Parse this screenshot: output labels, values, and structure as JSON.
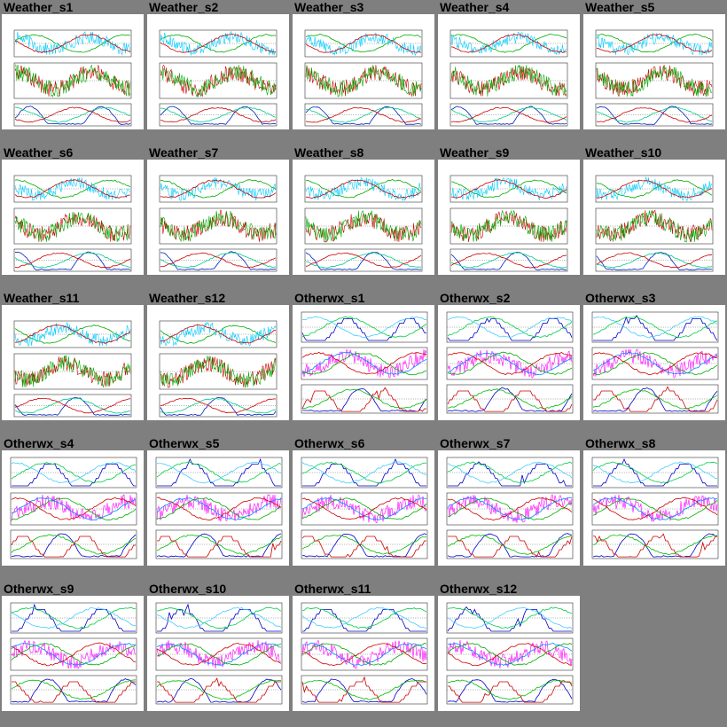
{
  "page": {
    "background": "#7f7f7f"
  },
  "tiles": [
    {
      "title": "Weather_s1",
      "kind": "weather"
    },
    {
      "title": "Weather_s2",
      "kind": "weather"
    },
    {
      "title": "Weather_s3",
      "kind": "weather"
    },
    {
      "title": "Weather_s4",
      "kind": "weather"
    },
    {
      "title": "Weather_s5",
      "kind": "weather"
    },
    {
      "title": "Weather_s6",
      "kind": "weather"
    },
    {
      "title": "Weather_s7",
      "kind": "weather"
    },
    {
      "title": "Weather_s8",
      "kind": "weather"
    },
    {
      "title": "Weather_s9",
      "kind": "weather"
    },
    {
      "title": "Weather_s10",
      "kind": "weather"
    },
    {
      "title": "Weather_s11",
      "kind": "weather"
    },
    {
      "title": "Weather_s12",
      "kind": "weather"
    },
    {
      "title": "Otherwx_s1",
      "kind": "otherwx"
    },
    {
      "title": "Otherwx_s2",
      "kind": "otherwx"
    },
    {
      "title": "Otherwx_s3",
      "kind": "otherwx"
    },
    {
      "title": "Otherwx_s4",
      "kind": "otherwx"
    },
    {
      "title": "Otherwx_s5",
      "kind": "otherwx"
    },
    {
      "title": "Otherwx_s6",
      "kind": "otherwx"
    },
    {
      "title": "Otherwx_s7",
      "kind": "otherwx"
    },
    {
      "title": "Otherwx_s8",
      "kind": "otherwx"
    },
    {
      "title": "Otherwx_s9",
      "kind": "otherwx"
    },
    {
      "title": "Otherwx_s10",
      "kind": "otherwx"
    },
    {
      "title": "Otherwx_s11",
      "kind": "otherwx"
    },
    {
      "title": "Otherwx_s12",
      "kind": "otherwx"
    }
  ]
}
